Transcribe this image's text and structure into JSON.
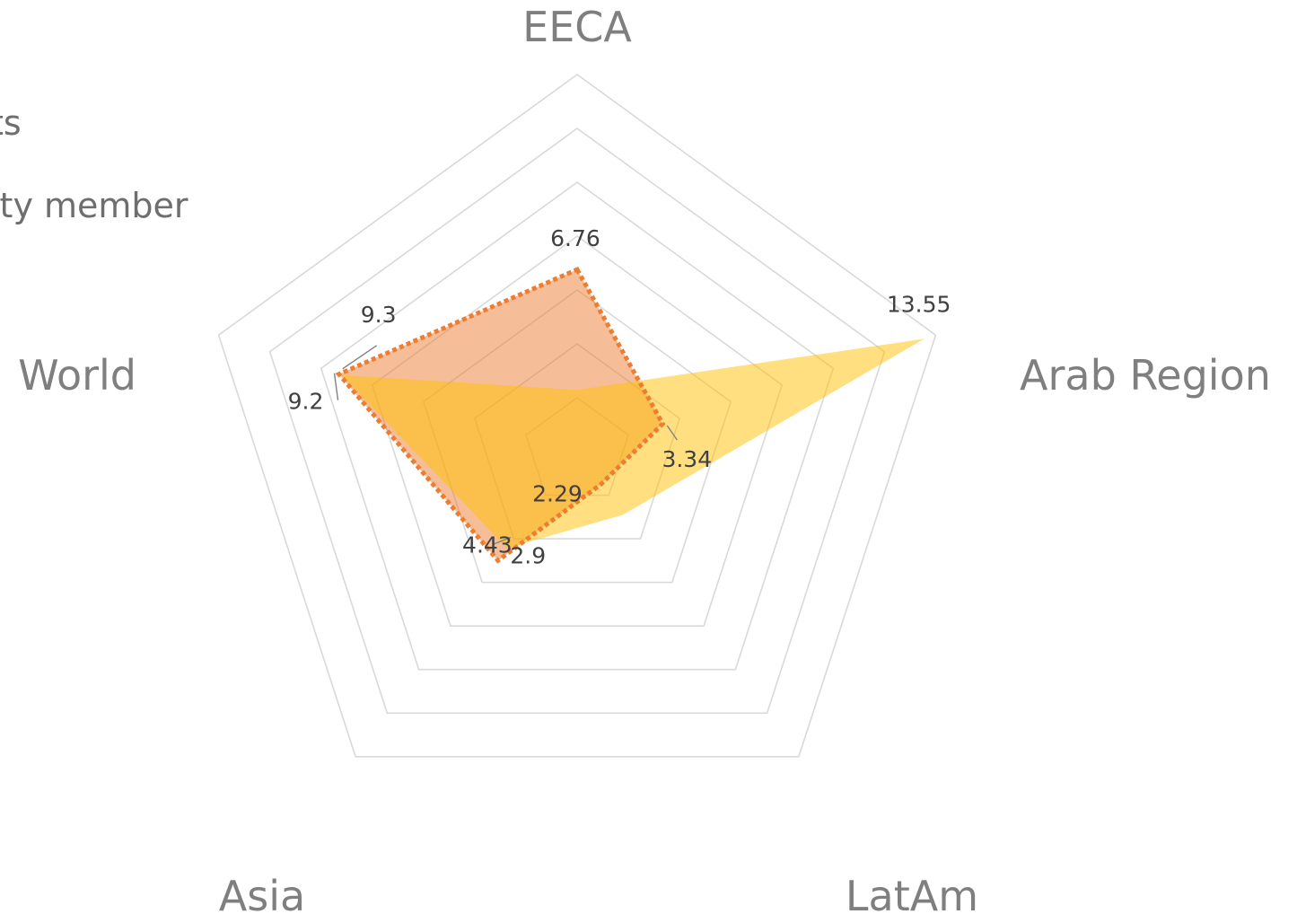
{
  "chart_data": {
    "type": "radar",
    "categories": [
      "EECA",
      "Arab Region",
      "LatAm",
      "Asia",
      "World"
    ],
    "grid": true,
    "legend_position": "top-left",
    "colors": {
      "gridline": "#d9d9d9",
      "series_1_fill": "#ffc000",
      "series_2_fill": "#ed7d31",
      "series_2_line": "#ed7d31",
      "leader_line": "#808080"
    },
    "series": [
      {
        "name": "ts",
        "values": [
          2.29,
          13.55,
          2.9,
          4.43,
          9.2
        ],
        "labels": [
          "2.29",
          "13.55",
          "2.9",
          "4.43",
          "9.2"
        ]
      },
      {
        "name": "lty member",
        "values": [
          6.76,
          3.34,
          1.5,
          5.0,
          9.3
        ],
        "labels": [
          "6.76",
          "3.34",
          "",
          "",
          "9.3"
        ]
      }
    ]
  }
}
